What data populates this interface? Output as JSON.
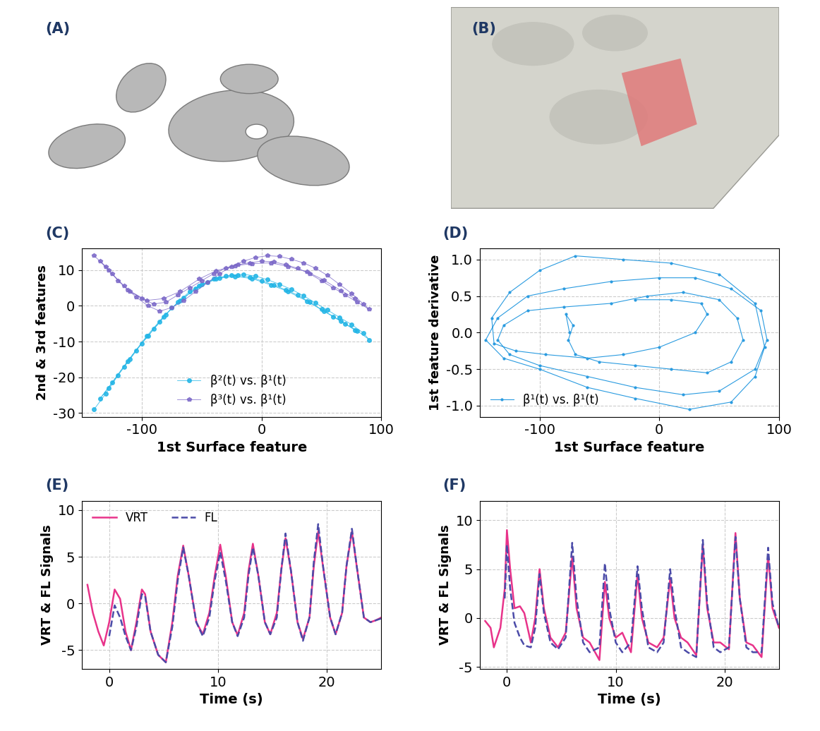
{
  "figures": [
    {
      "panel": "(A)"
    },
    {
      "panel": "(B)"
    }
  ],
  "chart_data": [
    {
      "panel": "(C)",
      "type": "scatter",
      "x_label": "1st Surface feature",
      "y_label": "2nd & 3rd features",
      "xlim": [
        -150,
        100
      ],
      "xticks": [
        -100,
        0,
        100
      ],
      "ylim": [
        -31,
        16
      ],
      "yticks": [
        -30,
        -20,
        -10,
        0,
        10
      ],
      "grid": true,
      "legend": "lower center",
      "x": [
        -140,
        -130,
        -120,
        -110,
        -100,
        -90,
        -80,
        -70,
        -60,
        -50,
        -40,
        -30,
        -20,
        -10,
        0,
        10,
        20,
        30,
        40,
        50,
        60,
        70,
        80,
        90,
        85,
        75,
        65,
        55,
        45,
        35,
        25,
        15,
        5,
        -5,
        -15,
        -25,
        -35,
        -45,
        -55,
        -65,
        -75,
        -85,
        -95,
        -105,
        -115,
        -125,
        -135,
        -128,
        -112,
        -96,
        -82,
        -68,
        -52,
        -38,
        -22,
        -8,
        8,
        22,
        38,
        52,
        66,
        78
      ],
      "series": [
        {
          "name": "β²(t) vs. β¹(t)",
          "color": "#22b5e6",
          "marker": "o",
          "values": [
            -29,
            -24.5,
            -19.5,
            -15,
            -10.5,
            -6.5,
            -2.5,
            1,
            4,
            6,
            7.5,
            8.3,
            8.5,
            8,
            7,
            5.8,
            4.5,
            3,
            1,
            -1,
            -3,
            -5,
            -7,
            -9.5,
            -7.6,
            -5.2,
            -3.2,
            -1.2,
            0.8,
            2.8,
            4.6,
            6,
            7.3,
            8.3,
            8.8,
            8.6,
            7.8,
            6.5,
            4.8,
            2.2,
            -0.6,
            -4.5,
            -8.5,
            -12.5,
            -17,
            -21.5,
            -26,
            -23,
            -15.5,
            -8.5,
            -3,
            1.5,
            5.5,
            7.6,
            8.2,
            7.6,
            5.8,
            4,
            1.3,
            -1.5,
            -4.3,
            -6.8
          ]
        },
        {
          "name": "β³(t) vs. β¹(t)",
          "color": "#7b68c8",
          "marker": "pentagon",
          "values": [
            14,
            11,
            7,
            4,
            2,
            0.5,
            1,
            3,
            5,
            7,
            9,
            10.5,
            11.5,
            12,
            12.5,
            12.3,
            11.5,
            10.5,
            9,
            7,
            5,
            3,
            1,
            -1,
            0.5,
            3.5,
            6,
            8.5,
            10.5,
            12,
            13,
            13.8,
            14,
            13.5,
            12.5,
            11,
            9,
            6.5,
            4,
            1.5,
            -0.5,
            -1.5,
            0,
            2.5,
            5.5,
            9,
            12.5,
            10,
            4.5,
            1.5,
            2,
            4,
            7.5,
            9.8,
            11.2,
            11.8,
            12,
            11,
            9.5,
            7.2,
            4.3,
            2
          ]
        }
      ]
    },
    {
      "panel": "(D)",
      "type": "line",
      "x_label": "1st Surface feature",
      "y_label": "1st feature derivative",
      "xlim": [
        -150,
        100
      ],
      "xticks": [
        -100,
        0,
        100
      ],
      "ylim": [
        -1.15,
        1.15
      ],
      "yticks": [
        -1.0,
        -0.5,
        0.0,
        0.5,
        1.0
      ],
      "grid": true,
      "legend": "lower left",
      "x": [
        -75,
        -78,
        -72,
        -76,
        -70,
        -50,
        -20,
        10,
        40,
        60,
        70,
        65,
        50,
        20,
        -10,
        -40,
        -80,
        -110,
        -130,
        -135,
        -125,
        -100,
        -60,
        -20,
        20,
        50,
        80,
        90,
        85,
        60,
        30,
        0,
        -40,
        -80,
        -110,
        -135,
        -145,
        -130,
        -100,
        -60,
        -20,
        25,
        60,
        80,
        88,
        80,
        50,
        10,
        -30,
        -70,
        -100,
        -125,
        -140,
        -138,
        -120,
        -95,
        -60,
        -30,
        0,
        30,
        40,
        35,
        10,
        -20
      ],
      "series": [
        {
          "name": "β̇¹(t) vs. β¹(t)",
          "color": "#2a9be0",
          "marker": "point",
          "values": [
            0,
            0.25,
            0.1,
            -0.1,
            -0.3,
            -0.4,
            -0.45,
            -0.5,
            -0.55,
            -0.4,
            -0.1,
            0.2,
            0.45,
            0.55,
            0.5,
            0.4,
            0.35,
            0.3,
            0.1,
            -0.1,
            -0.3,
            -0.45,
            -0.6,
            -0.75,
            -0.85,
            -0.8,
            -0.5,
            -0.1,
            0.3,
            0.6,
            0.75,
            0.75,
            0.7,
            0.6,
            0.5,
            0.2,
            -0.1,
            -0.35,
            -0.5,
            -0.75,
            -0.9,
            -1.05,
            -0.95,
            -0.6,
            -0.2,
            0.4,
            0.8,
            0.95,
            1.0,
            1.05,
            0.85,
            0.55,
            0.2,
            -0.15,
            -0.25,
            -0.3,
            -0.35,
            -0.3,
            -0.2,
            0,
            0.25,
            0.4,
            0.45,
            0.45
          ]
        }
      ]
    },
    {
      "panel": "(E)",
      "type": "line",
      "x_label": "Time (s)",
      "y_label": "VRT & FL Signals",
      "xlim": [
        -2.5,
        25
      ],
      "xticks": [
        0,
        10,
        20
      ],
      "ylim": [
        -7,
        11
      ],
      "yticks": [
        -5,
        0,
        5,
        10
      ],
      "grid": true,
      "legend": "upper left",
      "x": [
        -2,
        -1.5,
        -1,
        -0.5,
        0,
        0.5,
        1,
        1.5,
        2,
        2.5,
        3,
        3.3,
        3.8,
        4.5,
        5.2,
        5.8,
        6.3,
        6.8,
        7.3,
        8,
        8.6,
        9.2,
        9.7,
        10.2,
        10.7,
        11.3,
        11.8,
        12.4,
        12.8,
        13.2,
        13.7,
        14.3,
        14.8,
        15.4,
        15.8,
        16.2,
        16.7,
        17.3,
        17.8,
        18.4,
        18.8,
        19.2,
        19.7,
        20.3,
        20.8,
        21.4,
        21.8,
        22.3,
        22.8,
        23.4,
        24,
        24.5,
        25
      ],
      "series": [
        {
          "name": "VRT",
          "color": "#e8338a",
          "line_style": "solid",
          "values": [
            2,
            -1,
            -3,
            -4.5,
            -2,
            1.5,
            0.5,
            -3,
            -5,
            -2,
            1.5,
            1,
            -3,
            -5.5,
            -6.3,
            -2,
            3,
            6.2,
            3,
            -2,
            -3.3,
            -1,
            3,
            6.3,
            3,
            -2,
            -3.4,
            -1,
            3.5,
            6.4,
            3,
            -2,
            -3.3,
            -1,
            3.5,
            7,
            3.5,
            -2,
            -3.8,
            -1.5,
            4,
            7.7,
            3.5,
            -1.5,
            -3.3,
            -1,
            4,
            7.7,
            3.5,
            -1.5,
            -2,
            -1.8,
            -1.5
          ]
        },
        {
          "name": "FL",
          "color": "#4b4ba8",
          "line_style": "dashed",
          "values": [
            null,
            null,
            null,
            null,
            -3.5,
            -0.2,
            -1.5,
            -3.5,
            -5,
            -2.5,
            1,
            0.8,
            -3,
            -5.5,
            -6.3,
            -2.5,
            2.5,
            6,
            3,
            -2,
            -3.5,
            -1.5,
            2.5,
            5.5,
            2.5,
            -2,
            -3.5,
            -1.5,
            3,
            6,
            3,
            -2,
            -3.3,
            -1.5,
            3.5,
            7.5,
            3.5,
            -2,
            -4,
            -1.5,
            4.5,
            8.5,
            3.5,
            -1.5,
            -3.3,
            -1,
            4,
            8,
            3.5,
            -1.5,
            -2,
            -1.8,
            -1.6
          ]
        }
      ]
    },
    {
      "panel": "(F)",
      "type": "line",
      "x_label": "Time (s)",
      "y_label": "VRT & FL Signals",
      "xlim": [
        -2.5,
        25
      ],
      "xticks": [
        0,
        10,
        20
      ],
      "ylim": [
        -5.2,
        12
      ],
      "yticks": [
        -5,
        0,
        5,
        10
      ],
      "grid": true,
      "x": [
        -2,
        -1.5,
        -1.2,
        -0.6,
        -0.2,
        0,
        0.3,
        0.7,
        1.2,
        1.6,
        2.2,
        2.6,
        3,
        3.4,
        4,
        4.7,
        5.4,
        6,
        6.4,
        7,
        7.6,
        8.5,
        9,
        9.4,
        10,
        10.6,
        11.4,
        12,
        12.4,
        13,
        13.8,
        14.4,
        15,
        15.4,
        16,
        16.6,
        17.4,
        18,
        18.4,
        19,
        19.6,
        20.4,
        21,
        21.4,
        22,
        22.6,
        23.4,
        24,
        24.4,
        25
      ],
      "series": [
        {
          "name": "VRT",
          "color": "#e8338a",
          "line_style": "solid",
          "values": [
            -0.3,
            -1,
            -3,
            -1,
            3,
            9,
            5,
            1,
            1.2,
            0.5,
            -2.5,
            0,
            5,
            1,
            -2,
            -3,
            -1.5,
            6.3,
            1,
            -2,
            -2.5,
            -4.3,
            3.7,
            0,
            -2,
            -1.5,
            -3.5,
            4.5,
            0,
            -2.5,
            -3,
            -2,
            4,
            0,
            -2,
            -2.5,
            -3.8,
            7.5,
            1,
            -2.5,
            -2.5,
            -3.2,
            8.7,
            2,
            -2.5,
            -2.8,
            -4,
            6.5,
            1,
            -1
          ]
        },
        {
          "name": "FL",
          "color": "#4b4ba8",
          "line_style": "dashed",
          "values": [
            null,
            null,
            null,
            null,
            2,
            7.5,
            3,
            -0.5,
            -2,
            -2.8,
            -3,
            -1,
            4.5,
            0.5,
            -2.5,
            -3.2,
            -2,
            7.7,
            2,
            -2.5,
            -3.5,
            -3,
            5.6,
            1,
            -2.5,
            -3.5,
            -2.5,
            5.3,
            1,
            -3,
            -3.5,
            -2.5,
            5,
            1,
            -3,
            -3.5,
            -4,
            8,
            1.5,
            -3,
            -3.5,
            -3,
            8.3,
            2,
            -3,
            -3.5,
            -3.5,
            7.2,
            1.5,
            -1
          ]
        }
      ]
    }
  ]
}
